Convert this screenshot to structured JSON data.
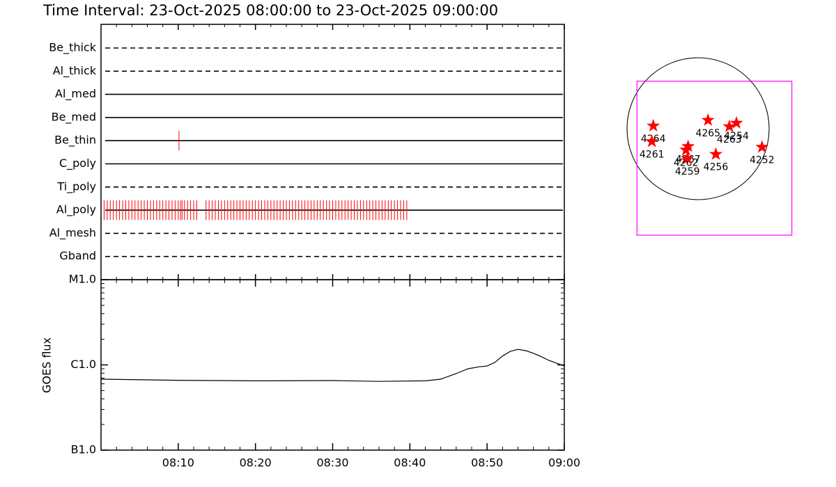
{
  "chart_data": [
    {
      "type": "timeline",
      "title": "Time Interval: 23-Oct-2025 08:00:00 to 23-Oct-2025 09:00:00",
      "xlim": [
        0,
        60
      ],
      "mark_color": "#ff0000",
      "filters": [
        {
          "name": "Be_thick",
          "style": "dashed",
          "observations": []
        },
        {
          "name": "Al_thick",
          "style": "dashed",
          "observations": []
        },
        {
          "name": "Al_med",
          "style": "solid",
          "observations": []
        },
        {
          "name": "Be_med",
          "style": "solid",
          "observations": []
        },
        {
          "name": "Be_thin",
          "style": "solid",
          "observations": [
            10.1
          ]
        },
        {
          "name": "C_poly",
          "style": "solid",
          "observations": []
        },
        {
          "name": "Ti_poly",
          "style": "dashed",
          "observations": []
        },
        {
          "name": "Al_poly",
          "style": "solid",
          "observations": [
            0.4,
            0.8,
            1.2,
            1.6,
            2.0,
            2.4,
            2.8,
            3.2,
            3.6,
            4.0,
            4.4,
            4.8,
            5.2,
            5.6,
            6.0,
            6.4,
            6.8,
            7.2,
            7.6,
            8.0,
            8.4,
            8.8,
            9.2,
            9.6,
            10.0,
            10.3,
            10.5,
            10.8,
            11.2,
            11.6,
            12.0,
            12.4,
            13.6,
            14.0,
            14.4,
            14.8,
            15.2,
            15.6,
            16.0,
            16.4,
            16.8,
            17.2,
            17.6,
            18.0,
            18.4,
            18.8,
            19.2,
            19.6,
            20.0,
            20.4,
            20.8,
            21.2,
            21.6,
            22.0,
            22.4,
            22.8,
            23.2,
            23.6,
            24.0,
            24.4,
            24.8,
            25.2,
            25.6,
            26.0,
            26.4,
            26.8,
            27.2,
            27.6,
            28.0,
            28.4,
            28.8,
            29.2,
            29.6,
            30.0,
            30.4,
            30.8,
            31.2,
            31.6,
            32.0,
            32.4,
            32.8,
            33.2,
            33.6,
            34.0,
            34.4,
            34.8,
            35.2,
            35.6,
            36.0,
            36.4,
            36.8,
            37.2,
            37.6,
            38.0,
            38.4,
            38.8,
            39.2,
            39.6
          ]
        },
        {
          "name": "Al_mesh",
          "style": "dashed",
          "observations": []
        },
        {
          "name": "Gband",
          "style": "dashed",
          "observations": []
        }
      ]
    },
    {
      "type": "line",
      "y_label": "GOES flux",
      "log_y": true,
      "color": "#000000",
      "x": [
        0,
        10,
        20,
        30,
        36,
        42,
        44,
        46,
        47.5,
        49,
        50,
        51,
        52,
        53,
        54,
        55,
        56,
        57,
        58,
        59,
        60
      ],
      "values": [
        6.8e-07,
        6.6e-07,
        6.5e-07,
        6.55e-07,
        6.4e-07,
        6.5e-07,
        6.8e-07,
        7.9e-07,
        9e-07,
        9.5e-07,
        9.7e-07,
        1.07e-06,
        1.27e-06,
        1.44e-06,
        1.52e-06,
        1.47e-06,
        1.37e-06,
        1.25e-06,
        1.13e-06,
        1.05e-06,
        9.7e-07
      ],
      "xlim": [
        0,
        60
      ],
      "xticks": [
        {
          "value": 10,
          "label": "08:10"
        },
        {
          "value": 20,
          "label": "08:20"
        },
        {
          "value": 30,
          "label": "08:30"
        },
        {
          "value": 40,
          "label": "08:40"
        },
        {
          "value": 50,
          "label": "08:50"
        },
        {
          "value": 60,
          "label": "09:00"
        }
      ],
      "ylim": [
        1e-07,
        1e-05
      ],
      "yticks": [
        {
          "value": 1e-07,
          "label": "B1.0"
        },
        {
          "value": 1e-06,
          "label": "C1.0"
        },
        {
          "value": 1e-05,
          "label": "M1.0"
        }
      ]
    },
    {
      "type": "map",
      "star_color": "#ff0000",
      "fov_color": "#ff00ff",
      "fov": {
        "x": [
          -0.86,
          1.32
        ],
        "y": [
          -1.5,
          0.67
        ]
      },
      "regions": [
        {
          "label": "4264",
          "x": -0.63,
          "y": 0.04
        },
        {
          "label": "4261",
          "x": -0.65,
          "y": -0.18
        },
        {
          "label": "4267",
          "x": -0.14,
          "y": -0.25
        },
        {
          "label": "4262",
          "x": -0.17,
          "y": -0.3
        },
        {
          "label": "4259",
          "x": -0.15,
          "y": -0.42
        },
        {
          "label": "4265",
          "x": 0.14,
          "y": 0.12
        },
        {
          "label": "4263",
          "x": 0.44,
          "y": 0.03
        },
        {
          "label": "4254",
          "x": 0.54,
          "y": 0.08
        },
        {
          "label": "4256",
          "x": 0.25,
          "y": -0.36
        },
        {
          "label": "4252",
          "x": 0.9,
          "y": -0.26
        }
      ]
    }
  ]
}
